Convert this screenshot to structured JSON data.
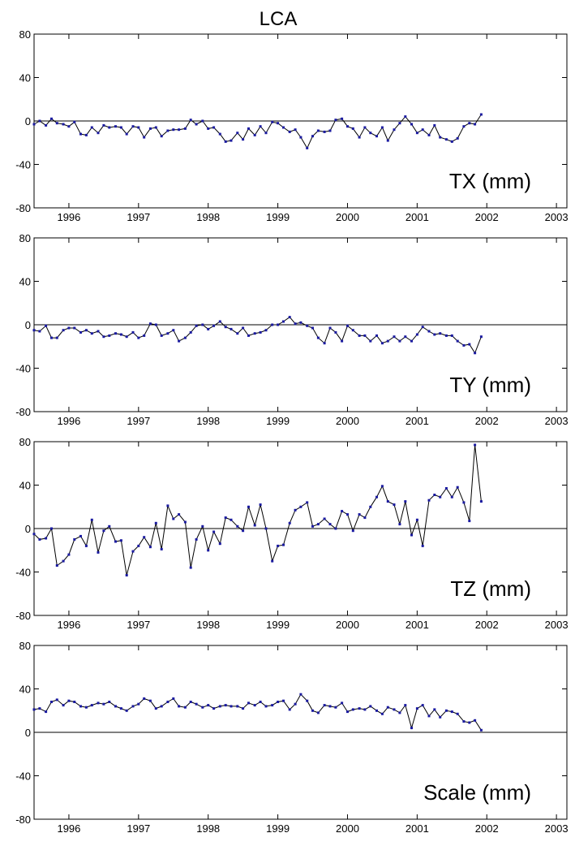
{
  "title": "LCA",
  "y_ticks": [
    80,
    40,
    0,
    -40,
    -80
  ],
  "x_ticks": [
    1996,
    1997,
    1998,
    1999,
    2000,
    2001,
    2002,
    2003
  ],
  "colors": {
    "line": "#000000",
    "marker": "#1a1aa0",
    "axis": "#000000"
  },
  "chart_data": [
    {
      "type": "line",
      "ylabel_in_plot": "TX (mm)",
      "xlim": [
        1995.5,
        2003.15
      ],
      "ylim": [
        -80,
        80
      ],
      "grid": false,
      "x": [
        1995.5,
        1995.58,
        1995.67,
        1995.75,
        1995.83,
        1995.92,
        1996.0,
        1996.08,
        1996.17,
        1996.25,
        1996.33,
        1996.42,
        1996.5,
        1996.58,
        1996.67,
        1996.75,
        1996.83,
        1996.92,
        1997.0,
        1997.08,
        1997.17,
        1997.25,
        1997.33,
        1997.42,
        1997.5,
        1997.58,
        1997.67,
        1997.75,
        1997.83,
        1997.92,
        1998.0,
        1998.08,
        1998.17,
        1998.25,
        1998.33,
        1998.42,
        1998.5,
        1998.58,
        1998.67,
        1998.75,
        1998.83,
        1998.92,
        1999.0,
        1999.08,
        1999.17,
        1999.25,
        1999.33,
        1999.42,
        1999.5,
        1999.58,
        1999.67,
        1999.75,
        1999.83,
        1999.92,
        2000.0,
        2000.08,
        2000.17,
        2000.25,
        2000.33,
        2000.42,
        2000.5,
        2000.58,
        2000.67,
        2000.75,
        2000.83,
        2000.92,
        2001.0,
        2001.08,
        2001.17,
        2001.25,
        2001.33,
        2001.42,
        2001.5,
        2001.58,
        2001.67,
        2001.75,
        2001.83,
        2001.92
      ],
      "y": [
        -3,
        0,
        -4,
        2,
        -2,
        -3,
        -5,
        -1,
        -12,
        -13,
        -6,
        -11,
        -4,
        -6,
        -5,
        -6,
        -12,
        -5,
        -6,
        -15,
        -7,
        -6,
        -14,
        -9,
        -8,
        -8,
        -7,
        1,
        -3,
        0,
        -7,
        -6,
        -12,
        -19,
        -18,
        -11,
        -17,
        -7,
        -13,
        -5,
        -11,
        -1,
        -2,
        -6,
        -10,
        -8,
        -15,
        -25,
        -14,
        -9,
        -10,
        -9,
        1,
        2,
        -5,
        -7,
        -15,
        -6,
        -11,
        -14,
        -6,
        -18,
        -8,
        -2,
        4,
        -3,
        -11,
        -8,
        -13,
        -4,
        -15,
        -17,
        -19,
        -16,
        -5,
        -2,
        -3,
        6
      ]
    },
    {
      "type": "line",
      "ylabel_in_plot": "TY (mm)",
      "xlim": [
        1995.5,
        2003.15
      ],
      "ylim": [
        -80,
        80
      ],
      "grid": false,
      "x": [
        1995.5,
        1995.58,
        1995.67,
        1995.75,
        1995.83,
        1995.92,
        1996.0,
        1996.08,
        1996.17,
        1996.25,
        1996.33,
        1996.42,
        1996.5,
        1996.58,
        1996.67,
        1996.75,
        1996.83,
        1996.92,
        1997.0,
        1997.08,
        1997.17,
        1997.25,
        1997.33,
        1997.42,
        1997.5,
        1997.58,
        1997.67,
        1997.75,
        1997.83,
        1997.92,
        1998.0,
        1998.08,
        1998.17,
        1998.25,
        1998.33,
        1998.42,
        1998.5,
        1998.58,
        1998.67,
        1998.75,
        1998.83,
        1998.92,
        1999.0,
        1999.08,
        1999.17,
        1999.25,
        1999.33,
        1999.42,
        1999.5,
        1999.58,
        1999.67,
        1999.75,
        1999.83,
        1999.92,
        2000.0,
        2000.08,
        2000.17,
        2000.25,
        2000.33,
        2000.42,
        2000.5,
        2000.58,
        2000.67,
        2000.75,
        2000.83,
        2000.92,
        2001.0,
        2001.08,
        2001.17,
        2001.25,
        2001.33,
        2001.42,
        2001.5,
        2001.58,
        2001.67,
        2001.75,
        2001.83,
        2001.92
      ],
      "y": [
        -5,
        -6,
        -1,
        -12,
        -12,
        -5,
        -3,
        -3,
        -7,
        -5,
        -8,
        -6,
        -11,
        -10,
        -8,
        -9,
        -11,
        -7,
        -12,
        -10,
        1,
        0,
        -10,
        -8,
        -5,
        -15,
        -12,
        -7,
        -1,
        0,
        -4,
        -1,
        3,
        -2,
        -4,
        -8,
        -3,
        -10,
        -8,
        -7,
        -5,
        0,
        0,
        3,
        7,
        1,
        2,
        -1,
        -3,
        -12,
        -17,
        -3,
        -7,
        -15,
        -1,
        -5,
        -10,
        -10,
        -15,
        -10,
        -17,
        -15,
        -11,
        -15,
        -11,
        -15,
        -9,
        -2,
        -6,
        -9,
        -8,
        -10,
        -10,
        -15,
        -19,
        -18,
        -26,
        -11
      ]
    },
    {
      "type": "line",
      "ylabel_in_plot": "TZ (mm)",
      "xlim": [
        1995.5,
        2003.15
      ],
      "ylim": [
        -80,
        80
      ],
      "grid": false,
      "x": [
        1995.5,
        1995.58,
        1995.67,
        1995.75,
        1995.83,
        1995.92,
        1996.0,
        1996.08,
        1996.17,
        1996.25,
        1996.33,
        1996.42,
        1996.5,
        1996.58,
        1996.67,
        1996.75,
        1996.83,
        1996.92,
        1997.0,
        1997.08,
        1997.17,
        1997.25,
        1997.33,
        1997.42,
        1997.5,
        1997.58,
        1997.67,
        1997.75,
        1997.83,
        1997.92,
        1998.0,
        1998.08,
        1998.17,
        1998.25,
        1998.33,
        1998.42,
        1998.5,
        1998.58,
        1998.67,
        1998.75,
        1998.83,
        1998.92,
        1999.0,
        1999.08,
        1999.17,
        1999.25,
        1999.33,
        1999.42,
        1999.5,
        1999.58,
        1999.67,
        1999.75,
        1999.83,
        1999.92,
        2000.0,
        2000.08,
        2000.17,
        2000.25,
        2000.33,
        2000.42,
        2000.5,
        2000.58,
        2000.67,
        2000.75,
        2000.83,
        2000.92,
        2001.0,
        2001.08,
        2001.17,
        2001.25,
        2001.33,
        2001.42,
        2001.5,
        2001.58,
        2001.67,
        2001.75,
        2001.83,
        2001.92
      ],
      "y": [
        -5,
        -10,
        -9,
        0,
        -34,
        -30,
        -24,
        -10,
        -7,
        -16,
        8,
        -22,
        -2,
        2,
        -12,
        -11,
        -43,
        -21,
        -16,
        -8,
        -17,
        5,
        -19,
        21,
        9,
        13,
        6,
        -36,
        -10,
        2,
        -20,
        -3,
        -14,
        10,
        8,
        2,
        -2,
        20,
        3,
        22,
        0,
        -30,
        -16,
        -15,
        5,
        17,
        20,
        24,
        2,
        4,
        9,
        4,
        0,
        16,
        13,
        -2,
        13,
        10,
        20,
        29,
        39,
        25,
        22,
        4,
        25,
        -6,
        8,
        -16,
        26,
        31,
        29,
        37,
        29,
        38,
        24,
        7,
        77,
        25
      ]
    },
    {
      "type": "line",
      "ylabel_in_plot": "Scale (mm)",
      "xlim": [
        1995.5,
        2003.15
      ],
      "ylim": [
        -80,
        80
      ],
      "grid": false,
      "x": [
        1995.5,
        1995.58,
        1995.67,
        1995.75,
        1995.83,
        1995.92,
        1996.0,
        1996.08,
        1996.17,
        1996.25,
        1996.33,
        1996.42,
        1996.5,
        1996.58,
        1996.67,
        1996.75,
        1996.83,
        1996.92,
        1997.0,
        1997.08,
        1997.17,
        1997.25,
        1997.33,
        1997.42,
        1997.5,
        1997.58,
        1997.67,
        1997.75,
        1997.83,
        1997.92,
        1998.0,
        1998.08,
        1998.17,
        1998.25,
        1998.33,
        1998.42,
        1998.5,
        1998.58,
        1998.67,
        1998.75,
        1998.83,
        1998.92,
        1999.0,
        1999.08,
        1999.17,
        1999.25,
        1999.33,
        1999.42,
        1999.5,
        1999.58,
        1999.67,
        1999.75,
        1999.83,
        1999.92,
        2000.0,
        2000.08,
        2000.17,
        2000.25,
        2000.33,
        2000.42,
        2000.5,
        2000.58,
        2000.67,
        2000.75,
        2000.83,
        2000.92,
        2001.0,
        2001.08,
        2001.17,
        2001.25,
        2001.33,
        2001.42,
        2001.5,
        2001.58,
        2001.67,
        2001.75,
        2001.83,
        2001.92
      ],
      "y": [
        21,
        22,
        19,
        28,
        30,
        25,
        29,
        28,
        24,
        23,
        25,
        27,
        26,
        28,
        24,
        22,
        20,
        24,
        26,
        31,
        29,
        22,
        24,
        28,
        31,
        24,
        23,
        28,
        26,
        23,
        25,
        22,
        24,
        25,
        24,
        24,
        22,
        27,
        25,
        28,
        24,
        25,
        28,
        29,
        21,
        26,
        35,
        29,
        20,
        18,
        25,
        24,
        23,
        27,
        19,
        21,
        22,
        21,
        24,
        20,
        17,
        23,
        21,
        18,
        25,
        4,
        22,
        25,
        15,
        21,
        14,
        20,
        19,
        17,
        10,
        9,
        11,
        2
      ]
    }
  ]
}
